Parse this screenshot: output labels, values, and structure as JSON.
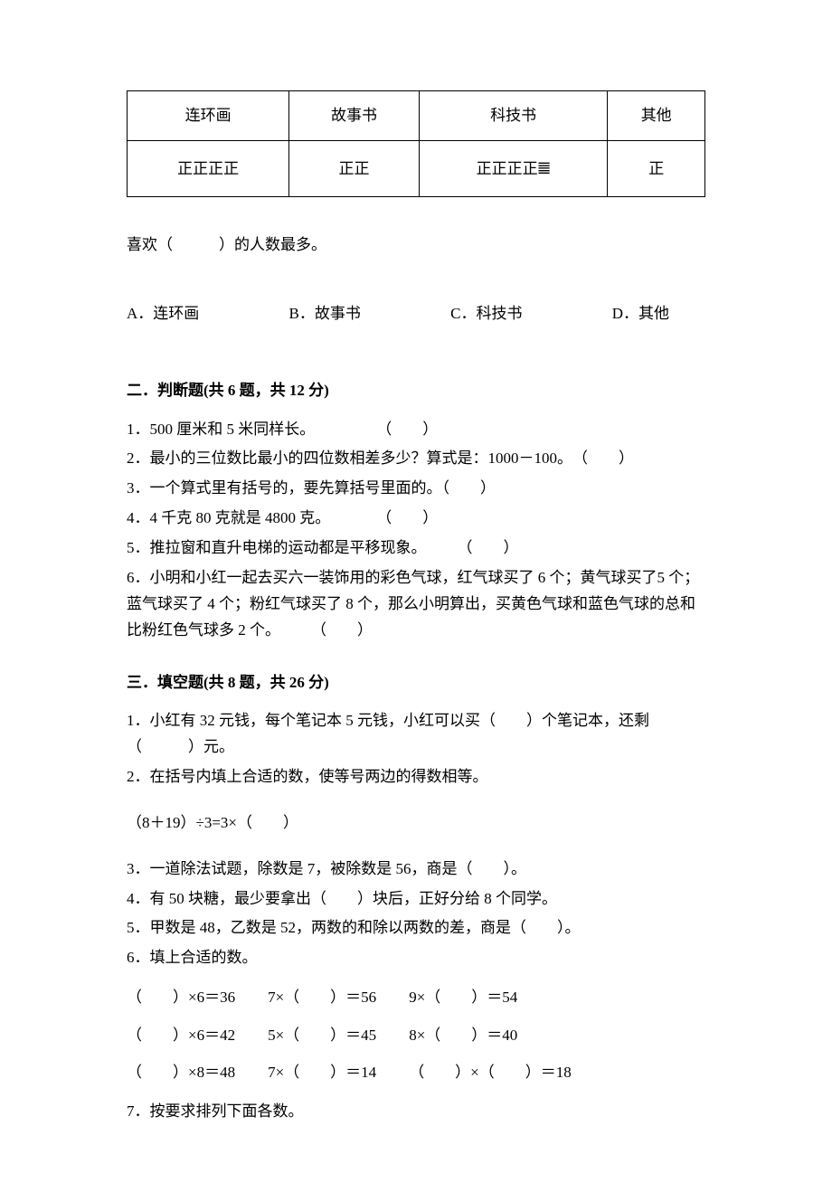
{
  "table": {
    "headers": [
      "连环画",
      "故事书",
      "科技书",
      "其他"
    ],
    "tallies": [
      "正正正正",
      "正正",
      "正正正正𝍤",
      "正"
    ]
  },
  "q_table": {
    "prompt": "喜欢（　　　）的人数最多。",
    "options": {
      "a": "A．连环画",
      "b": "B．故事书",
      "c": "C．科技书",
      "d": "D．其他"
    }
  },
  "section2": {
    "title": "二．判断题(共 6 题，共 12 分)",
    "items": [
      "1．500 厘米和 5 米同样长。　　　　　（　　）",
      "2．最小的三位数比最小的四位数相差多少？算式是：1000－100。　（　　）",
      "3．一个算式里有括号的，要先算括号里面的。（　　）",
      "4．4 千克 80 克就是 4800 克。　　　　（　　）",
      "5．推拉窗和直升电梯的运动都是平移现象。　　　（　　）",
      "6．小明和小红一起去买六一装饰用的彩色气球，红气球买了 6 个；黄气球买了5 个；蓝气球买了 4 个；粉红气球买了 8 个，那么小明算出，买黄色气球和蓝色气球的总和比粉红色气球多 2 个。　　　（　　）"
    ]
  },
  "section3": {
    "title": "三．填空题(共 8 题，共 26 分)",
    "q1": "1．小红有 32 元钱，每个笔记本 5 元钱，小红可以买（　　）个笔记本，还剩（　　　）元。",
    "q2a": "2．在括号内填上合适的数，使等号两边的得数相等。",
    "q2b": "（8＋19）÷3=3×（　　）",
    "q3": "3．一道除法试题，除数是 7，被除数是 56，商是（　　）。",
    "q4": "4．有 50 块糖，最少要拿出（　　）块后，正好分给 8 个同学。",
    "q5": "5．甲数是 48，乙数是 52，两数的和除以两数的差，商是（　　）。",
    "q6title": "6．填上合适的数。",
    "q6rows": [
      [
        "（　　）×6＝36",
        "7×（　　）＝56",
        "9×（　　）＝54"
      ],
      [
        "（　　）×6＝42",
        "5×（　　）＝45",
        "8×（　　）＝40"
      ],
      [
        "（　　）×8＝48",
        "7×（　　）＝14",
        "（　　）×（　　）＝18"
      ]
    ],
    "q7": "7．按要求排列下面各数。"
  }
}
